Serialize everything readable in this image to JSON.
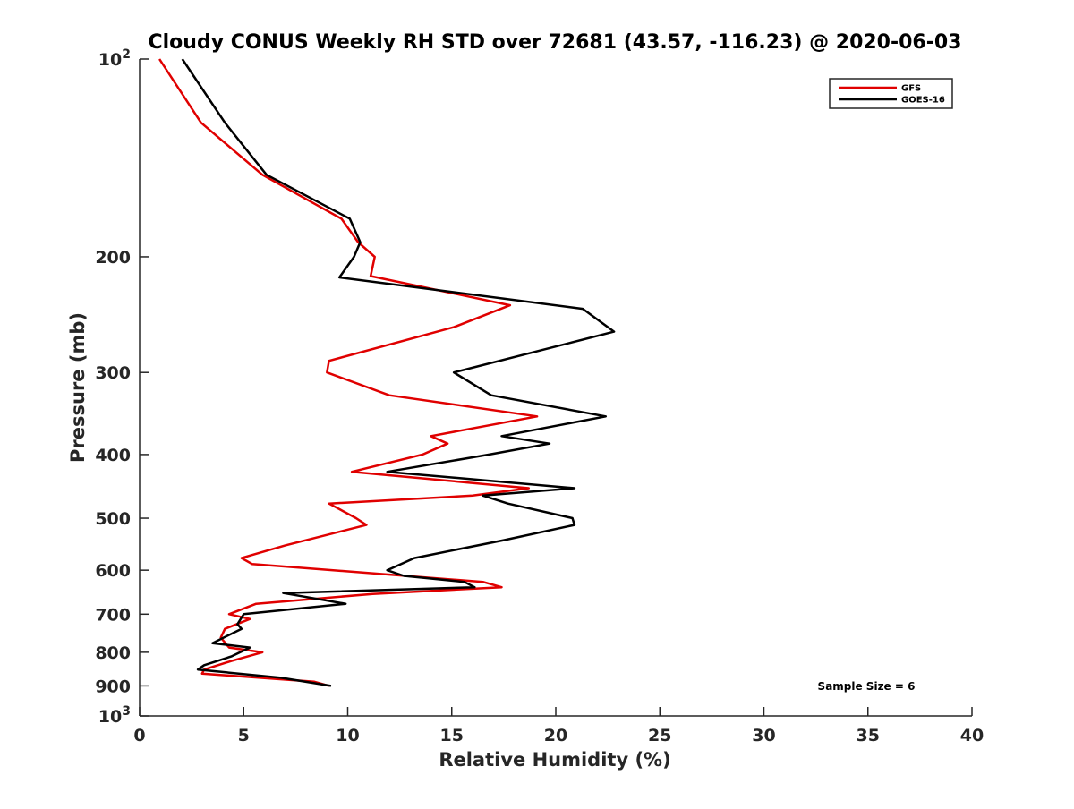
{
  "chart_data": {
    "type": "line",
    "title": "Cloudy CONUS Weekly RH STD over 72681 (43.57, -116.23) @ 2020-06-03",
    "xlabel": "Relative Humidity (%)",
    "ylabel": "Pressure (mb)",
    "xlim": [
      0,
      40
    ],
    "ylim": [
      100,
      1000
    ],
    "y_scale": "log",
    "y_reversed": true,
    "x_ticks": [
      0,
      5,
      10,
      15,
      20,
      25,
      30,
      35,
      40
    ],
    "x_tick_labels": [
      "0",
      "5",
      "10",
      "15",
      "20",
      "25",
      "30",
      "35",
      "40"
    ],
    "y_ticks": [
      {
        "value": 100,
        "base": "10",
        "exp": "2"
      },
      {
        "value": 200,
        "text": "200"
      },
      {
        "value": 300,
        "text": "300"
      },
      {
        "value": 400,
        "text": "400"
      },
      {
        "value": 500,
        "text": "500"
      },
      {
        "value": 600,
        "text": "600"
      },
      {
        "value": 700,
        "text": "700"
      },
      {
        "value": 800,
        "text": "800"
      },
      {
        "value": 900,
        "text": "900"
      },
      {
        "value": 1000,
        "base": "10",
        "exp": "3"
      }
    ],
    "grid": false,
    "legend_position": "top-right",
    "annotation": "Sample Size = 6",
    "series": [
      {
        "name": "GFS",
        "color": "#e00000",
        "points": [
          [
            0.95,
            100
          ],
          [
            2.95,
            125
          ],
          [
            5.9,
            150
          ],
          [
            9.7,
            175
          ],
          [
            10.5,
            190
          ],
          [
            11.3,
            200
          ],
          [
            11.1,
            214
          ],
          [
            17.8,
            237
          ],
          [
            15.1,
            256
          ],
          [
            9.1,
            288
          ],
          [
            9.0,
            300
          ],
          [
            12.0,
            325
          ],
          [
            19.1,
            350
          ],
          [
            14.0,
            375
          ],
          [
            14.8,
            385
          ],
          [
            13.6,
            400
          ],
          [
            10.2,
            425
          ],
          [
            18.7,
            450
          ],
          [
            16.0,
            462
          ],
          [
            9.1,
            475
          ],
          [
            10.4,
            500
          ],
          [
            10.9,
            512
          ],
          [
            7.0,
            550
          ],
          [
            4.9,
            575
          ],
          [
            5.4,
            587
          ],
          [
            16.5,
            625
          ],
          [
            17.4,
            637
          ],
          [
            11.2,
            652
          ],
          [
            5.6,
            675
          ],
          [
            4.3,
            700
          ],
          [
            5.3,
            712
          ],
          [
            4.1,
            737
          ],
          [
            3.9,
            760
          ],
          [
            4.3,
            787
          ],
          [
            5.9,
            800
          ],
          [
            4.4,
            825
          ],
          [
            3.1,
            850
          ],
          [
            3.0,
            862
          ],
          [
            8.4,
            887
          ],
          [
            9.1,
            900
          ]
        ]
      },
      {
        "name": "GOES-16",
        "color": "#000000",
        "points": [
          [
            2.05,
            100
          ],
          [
            4.1,
            125
          ],
          [
            6.1,
            150
          ],
          [
            10.1,
            175
          ],
          [
            10.6,
            190
          ],
          [
            10.3,
            200
          ],
          [
            9.6,
            215
          ],
          [
            21.3,
            240
          ],
          [
            22.8,
            260
          ],
          [
            15.1,
            300
          ],
          [
            16.9,
            325
          ],
          [
            22.4,
            350
          ],
          [
            17.4,
            375
          ],
          [
            19.7,
            385
          ],
          [
            16.8,
            400
          ],
          [
            11.9,
            425
          ],
          [
            20.9,
            450
          ],
          [
            16.5,
            462
          ],
          [
            17.7,
            475
          ],
          [
            20.8,
            500
          ],
          [
            20.9,
            512
          ],
          [
            17.5,
            540
          ],
          [
            13.2,
            575
          ],
          [
            11.9,
            600
          ],
          [
            12.7,
            612
          ],
          [
            15.6,
            625
          ],
          [
            16.1,
            637
          ],
          [
            6.9,
            650
          ],
          [
            9.9,
            675
          ],
          [
            5.0,
            700
          ],
          [
            4.7,
            725
          ],
          [
            4.9,
            737
          ],
          [
            3.5,
            775
          ],
          [
            5.3,
            787
          ],
          [
            4.4,
            812
          ],
          [
            3.1,
            837
          ],
          [
            2.8,
            850
          ],
          [
            6.8,
            875
          ],
          [
            9.2,
            900
          ]
        ]
      }
    ]
  }
}
